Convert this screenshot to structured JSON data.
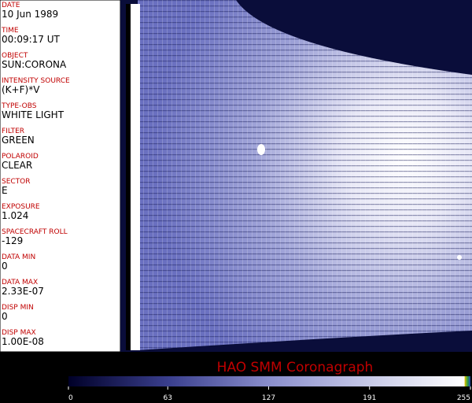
{
  "fields": [
    {
      "label": "DATE",
      "value": "10 Jun 1989"
    },
    {
      "label": "TIME",
      "value": "00:09:17 UT"
    },
    {
      "label": "OBJECT",
      "value": "SUN:CORONA"
    },
    {
      "label": "INTENSITY SOURCE",
      "value": "(K+F)*V"
    },
    {
      "label": "TYPE-OBS",
      "value": "WHITE LIGHT"
    },
    {
      "label": "FILTER",
      "value": "GREEN"
    },
    {
      "label": "POLAROID",
      "value": "CLEAR"
    },
    {
      "label": "SECTOR",
      "value": "E"
    },
    {
      "label": "EXPOSURE",
      "value": "1.024"
    },
    {
      "label": "SPACECRAFT ROLL",
      "value": "-129"
    },
    {
      "label": "DATA MIN",
      "value": "0"
    },
    {
      "label": "DATA MAX",
      "value": "2.33E-07"
    },
    {
      "label": "DISP MIN",
      "value": "0"
    },
    {
      "label": "DISP MAX",
      "value": "1.00E-08"
    }
  ],
  "title": "HAO   SMM Coronagraph",
  "colorbar": {
    "lim": [
      0,
      255
    ],
    "ticks": [
      0,
      63,
      127,
      191,
      255
    ]
  }
}
